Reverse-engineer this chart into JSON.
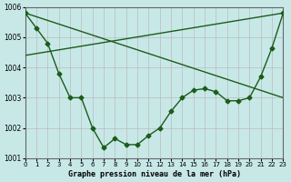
{
  "title": "Graphe pression niveau de la mer (hPa)",
  "background_color": "#c8e8e8",
  "grid_color": "#bbbbbb",
  "line_color": "#1a5c1a",
  "ylim": [
    1001,
    1006
  ],
  "xlim": [
    0,
    23
  ],
  "yticks": [
    1001,
    1002,
    1003,
    1004,
    1005,
    1006
  ],
  "xticks": [
    0,
    1,
    2,
    3,
    4,
    5,
    6,
    7,
    8,
    9,
    10,
    11,
    12,
    13,
    14,
    15,
    16,
    17,
    18,
    19,
    20,
    21,
    22,
    23
  ],
  "series1_x": [
    0,
    1,
    2,
    3,
    4,
    5,
    6,
    7,
    8,
    9,
    10,
    11,
    12,
    13,
    14,
    15,
    16,
    17,
    18,
    19,
    20,
    21,
    22,
    23
  ],
  "series1_y": [
    1005.8,
    1005.3,
    1004.8,
    1003.8,
    1003.0,
    1003.0,
    1002.0,
    1001.35,
    1001.65,
    1001.45,
    1001.45,
    1001.75,
    1002.0,
    1002.55,
    1003.0,
    1003.25,
    1003.3,
    1003.2,
    1002.9,
    1002.9,
    1003.0,
    1003.7,
    1004.65,
    1005.8
  ],
  "series2_x": [
    0,
    23
  ],
  "series2_y": [
    1005.8,
    1003.0
  ],
  "series3_x": [
    0,
    23
  ],
  "series3_y": [
    1004.4,
    1005.8
  ]
}
